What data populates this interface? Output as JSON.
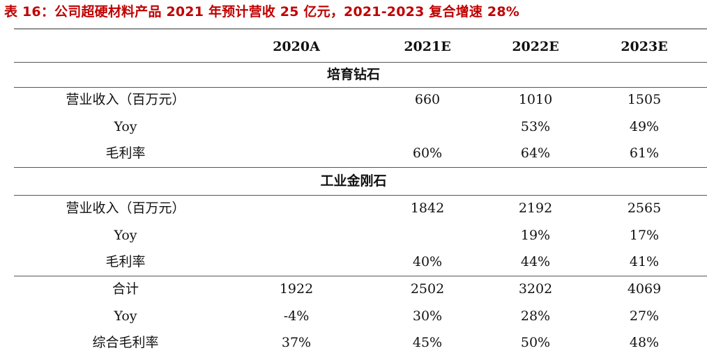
{
  "title": "表 16：公司超硬材料产品 2021 年预计营收 25 亿元，2021-2023 复合增速 28%",
  "header": [
    "",
    "2020A",
    "2021E",
    "2022E",
    "2023E"
  ],
  "sections": [
    {
      "name": "培育钻石",
      "rows": [
        [
          "营业收入（百万元）",
          "",
          "660",
          "1010",
          "1505"
        ],
        [
          "Yoy",
          "",
          "",
          "53%",
          "49%"
        ],
        [
          "毛利率",
          "",
          "60%",
          "64%",
          "61%"
        ]
      ]
    },
    {
      "name": "工业金刚石",
      "rows": [
        [
          "营业收入（百万元）",
          "",
          "1842",
          "2192",
          "2565"
        ],
        [
          "Yoy",
          "",
          "",
          "19%",
          "17%"
        ],
        [
          "毛利率",
          "",
          "40%",
          "44%",
          "41%"
        ]
      ]
    }
  ],
  "total_rows": [
    [
      "合计",
      "1922",
      "2502",
      "3202",
      "4069"
    ],
    [
      "Yoy",
      "-4%",
      "30%",
      "28%",
      "27%"
    ],
    [
      "综合毛利率",
      "37%",
      "45%",
      "50%",
      "48%"
    ]
  ]
}
